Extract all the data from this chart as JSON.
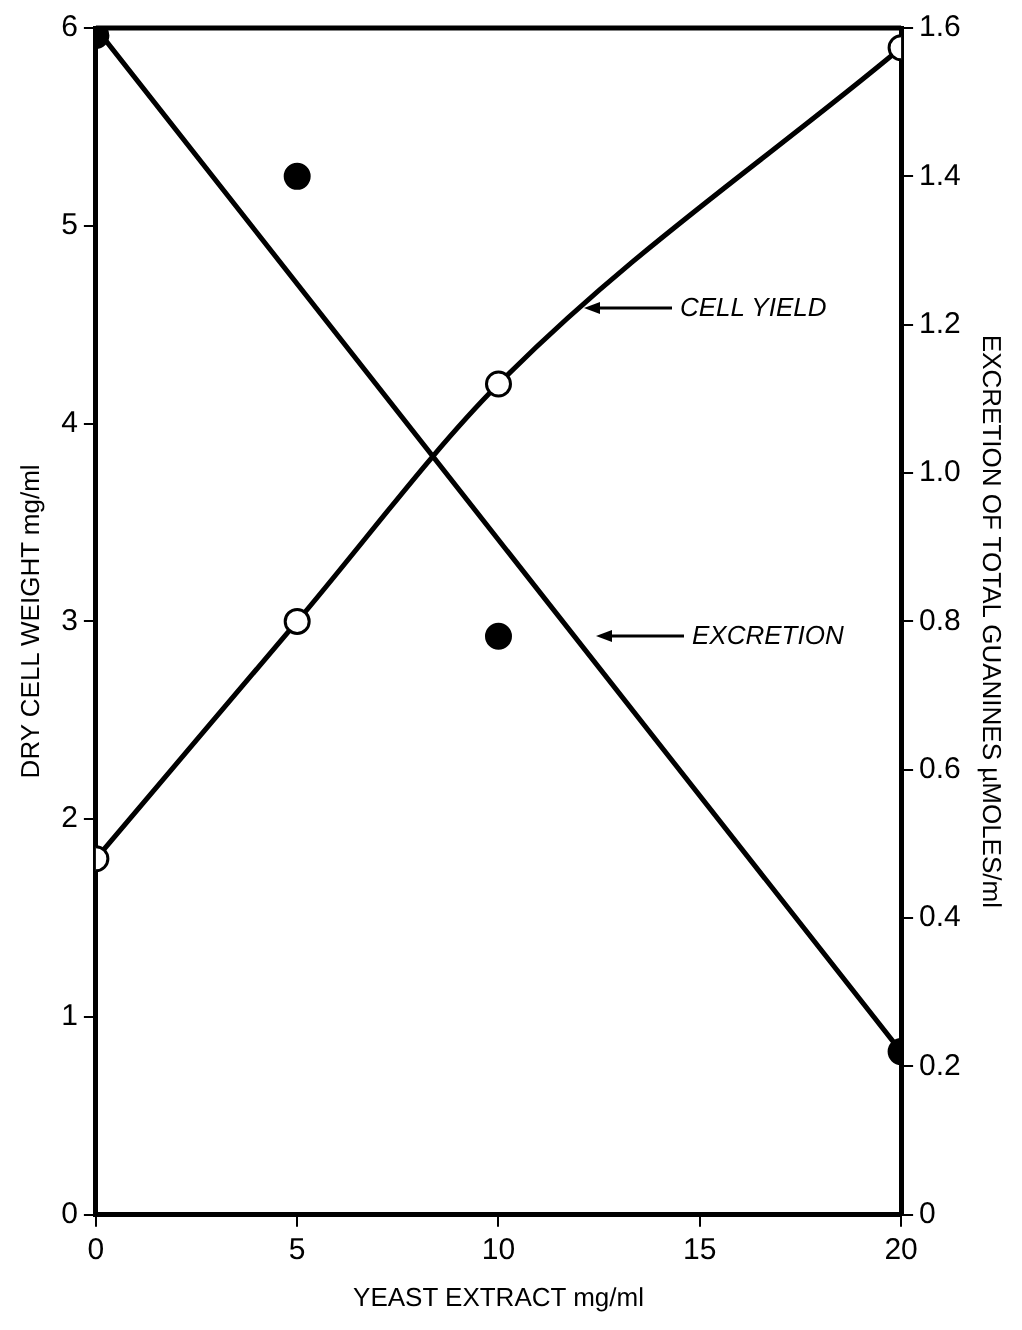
{
  "chart_data": {
    "type": "line",
    "xlabel": "YEAST EXTRACT mg/ml",
    "ylabel": "DRY CELL WEIGHT mg/ml",
    "y2label": "EXCRETION OF TOTAL GUANINES µMOLES/ml",
    "xlim": [
      0,
      20
    ],
    "xticks": [
      0,
      5,
      10,
      15,
      20
    ],
    "ylim": [
      0,
      6
    ],
    "yticks": [
      0,
      1,
      2,
      3,
      4,
      5,
      6
    ],
    "y2lim": [
      0,
      1.6
    ],
    "y2ticks": [
      0,
      0.2,
      0.4,
      0.6,
      0.8,
      {
        "value": 1,
        "label": "1.0"
      },
      1.2,
      1.4,
      1.6
    ],
    "grid": false,
    "legend": false,
    "series": [
      {
        "type": "line",
        "color": "#000000",
        "marker": "circle",
        "axis": "y",
        "x": [
          0,
          5,
          10,
          20
        ],
        "values": [
          1.8,
          3.0,
          4.2,
          5.9
        ]
      },
      {
        "type": "scatter",
        "color": "#000000",
        "marker": "circle",
        "axis": "y2",
        "x": [
          0,
          5,
          10,
          20
        ],
        "values": [
          1.59,
          1.4,
          0.78,
          0.22
        ]
      },
      {
        "type": "line",
        "color": "#000000",
        "marker": "none",
        "axis": "y2",
        "x": [
          0,
          20
        ],
        "values": [
          1.6,
          0.22
        ]
      }
    ],
    "annotations": [
      "CELL YIELD",
      "EXCRETION"
    ]
  }
}
